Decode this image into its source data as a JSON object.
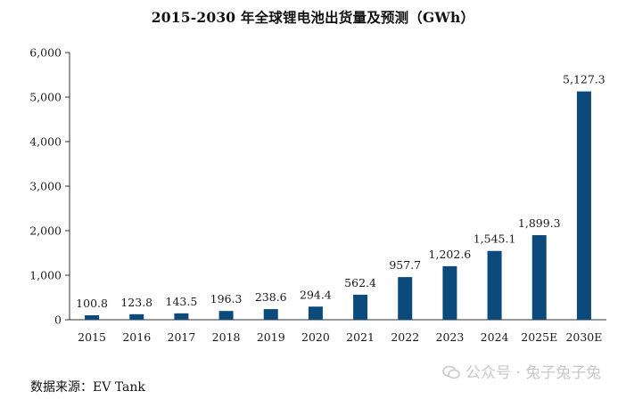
{
  "chart_data": {
    "type": "bar",
    "title": "2015-2030 年全球锂电池出货量及预测（GWh）",
    "categories": [
      "2015",
      "2016",
      "2017",
      "2018",
      "2019",
      "2020",
      "2021",
      "2022",
      "2023",
      "2024",
      "2025E",
      "2030E"
    ],
    "values": [
      100.8,
      123.8,
      143.5,
      196.3,
      238.6,
      294.4,
      562.4,
      957.7,
      1202.6,
      1545.1,
      1899.3,
      5127.3
    ],
    "data_labels": [
      "100.8",
      "123.8",
      "143.5",
      "196.3",
      "238.6",
      "294.4",
      "562.4",
      "957.7",
      "1,202.6",
      "1,545.1",
      "1,899.3",
      "5,127.3"
    ],
    "ylim": [
      0,
      6000
    ],
    "yticks": [
      0,
      1000,
      2000,
      3000,
      4000,
      5000,
      6000
    ],
    "ytick_labels": [
      "0",
      "1,000",
      "2,000",
      "3,000",
      "4,000",
      "5,000",
      "6,000"
    ],
    "xlabel": "",
    "ylabel": "",
    "grid": false,
    "bar_color": "#0b4a7a"
  },
  "source": "数据来源：EV Tank",
  "watermark": "公众号 · 兔子兔子兔"
}
